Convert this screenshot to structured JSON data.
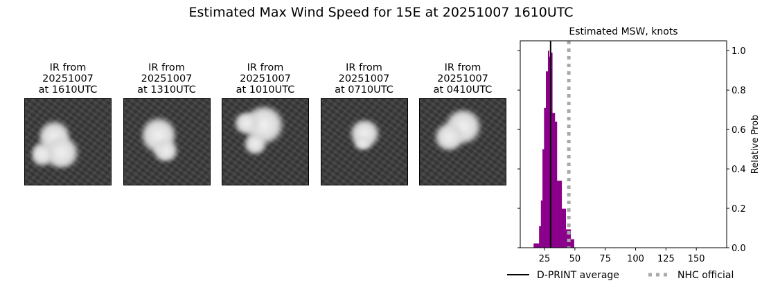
{
  "title": "Estimated Max Wind Speed for 15E at 20251007 1610UTC",
  "panels": [
    {
      "line1": "IR from",
      "line2": "20251007",
      "line3": "at 1610UTC"
    },
    {
      "line1": "IR from",
      "line2": "20251007",
      "line3": "at 1310UTC"
    },
    {
      "line1": "IR from",
      "line2": "20251007",
      "line3": "at 1010UTC"
    },
    {
      "line1": "IR from",
      "line2": "20251007",
      "line3": "at 0710UTC"
    },
    {
      "line1": "IR from",
      "line2": "20251007",
      "line3": "at 0410UTC"
    }
  ],
  "chart_data": {
    "type": "bar",
    "title": "Estimated MSW, knots",
    "xlabel": "",
    "ylabel": "Relative Prob",
    "xlim": [
      5,
      175
    ],
    "ylim": [
      0,
      1.05
    ],
    "xticks": [
      25,
      50,
      75,
      100,
      125,
      150
    ],
    "yticks": [
      0.0,
      0.2,
      0.4,
      0.6,
      0.8,
      1.0
    ],
    "y_axis_side": "right",
    "bar_color": "#8b008b",
    "bin_edges": [
      16,
      20.5,
      22,
      23.3,
      24.6,
      26.1,
      27.8,
      28.8,
      30.3,
      31.4,
      33.5,
      35.2,
      39.1,
      42.5,
      46.5,
      49.3
    ],
    "values": [
      0.022,
      0.109,
      0.24,
      0.5,
      0.71,
      0.895,
      1.0,
      0.97,
      0.99,
      0.684,
      0.64,
      0.34,
      0.198,
      0.093,
      0.043
    ],
    "dprint_average": 30,
    "nhc_official": 45,
    "legend": [
      {
        "label": "D-PRINT average",
        "color": "#000000",
        "style": "solid"
      },
      {
        "label": "NHC official",
        "color": "#a9a9a9",
        "style": "dotted"
      }
    ],
    "legend_placement": "bottom"
  }
}
